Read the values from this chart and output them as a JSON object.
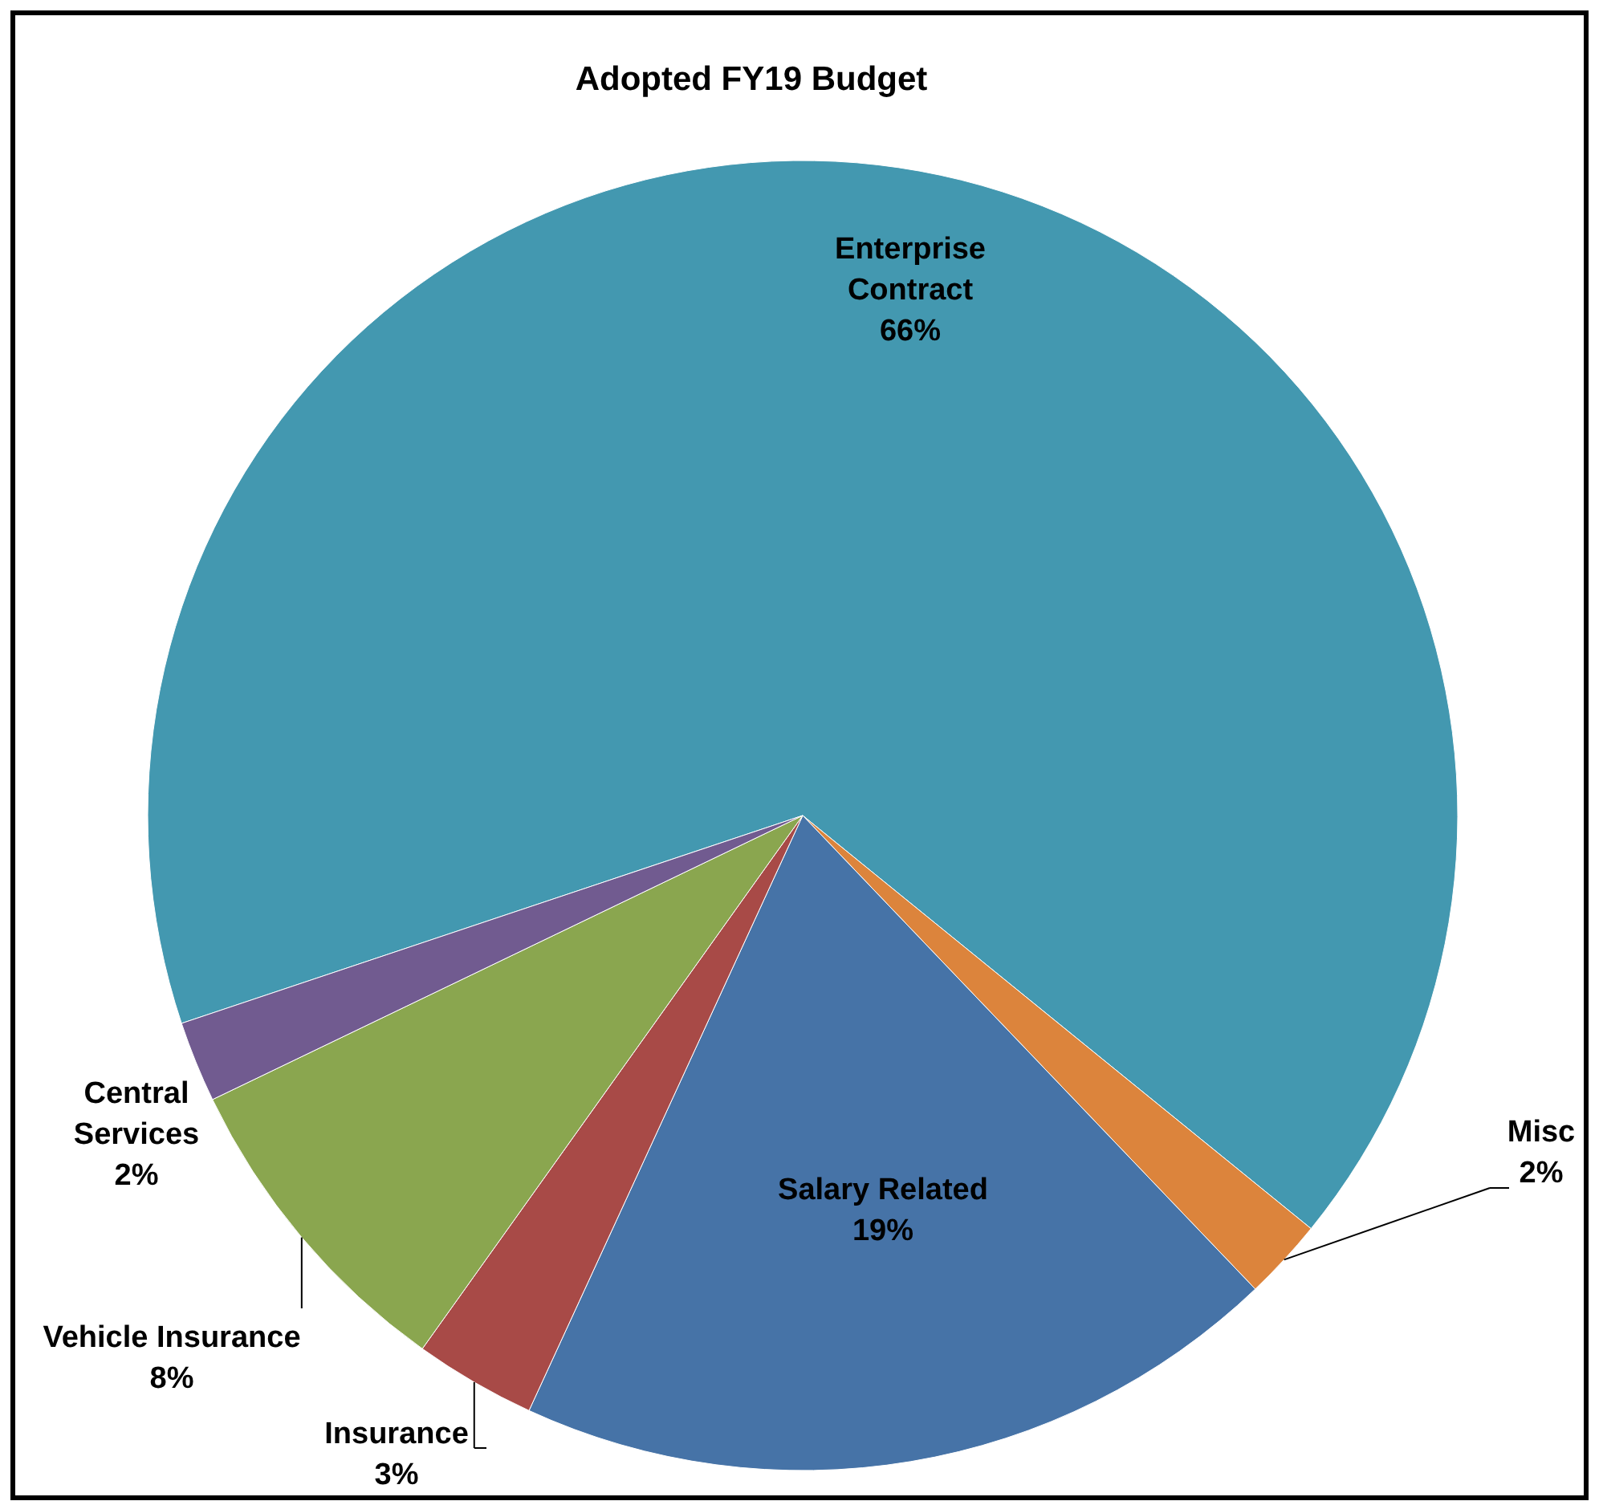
{
  "chart_data": {
    "type": "pie",
    "title": "Adopted FY19 Budget",
    "categories": [
      "Enterprise Contract",
      "Misc",
      "Salary Related",
      "Insurance",
      "Vehicle Insurance",
      "Central Services"
    ],
    "values": [
      66,
      2,
      19,
      3,
      8,
      2
    ],
    "colors": [
      "#4398b0",
      "#dc843c",
      "#4673a7",
      "#a84a47",
      "#8aa64f",
      "#715b90"
    ],
    "value_labels": [
      "66%",
      "2%",
      "19%",
      "3%",
      "8%",
      "2%"
    ]
  }
}
